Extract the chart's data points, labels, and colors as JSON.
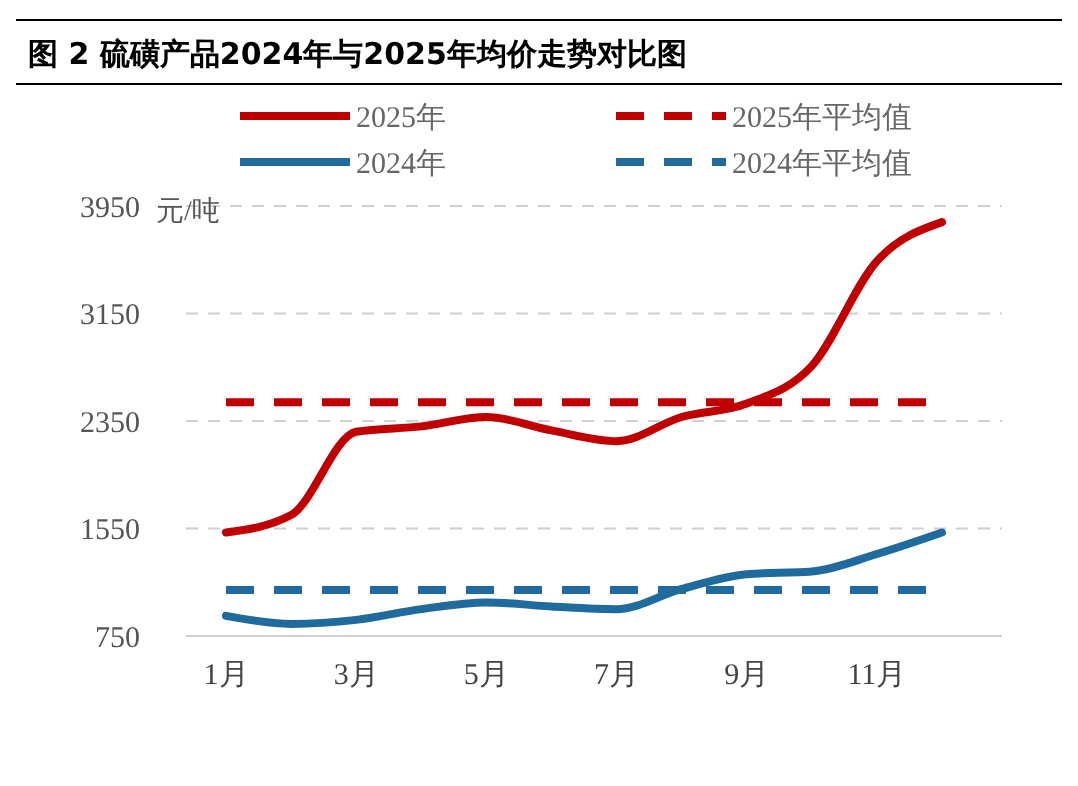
{
  "chart_data": {
    "type": "line",
    "title": "图 2 硫磺产品2024年与2025年均价走势对比图",
    "ylabel": "元/吨",
    "categories": [
      "1月",
      null,
      "3月",
      null,
      "5月",
      null,
      "7月",
      null,
      "9月",
      null,
      "11月",
      null
    ],
    "series": [
      {
        "name": "2025年",
        "color": "#c00000",
        "values": [
          1520,
          1650,
          2270,
          2310,
          2380,
          2280,
          2200,
          2380,
          2480,
          2760,
          3540,
          3830
        ]
      },
      {
        "name": "2024年",
        "color": "#1f6b9e",
        "values": [
          900,
          840,
          870,
          950,
          1000,
          970,
          950,
          1100,
          1210,
          1230,
          1360,
          1520
        ]
      }
    ],
    "ref_lines": [
      {
        "axis": "y",
        "value": 2490,
        "label": "2025年平均值",
        "color": "#c00000",
        "line_style": "dashed"
      },
      {
        "axis": "y",
        "value": 1093,
        "label": "2024年平均值",
        "color": "#1f6b9e",
        "line_style": "dashed"
      }
    ],
    "ylim": [
      750,
      3950
    ],
    "yticks": [
      750,
      1550,
      2350,
      3150,
      3950
    ],
    "grid": "y",
    "legend": "top",
    "marker": "none",
    "line_style": "solid"
  }
}
